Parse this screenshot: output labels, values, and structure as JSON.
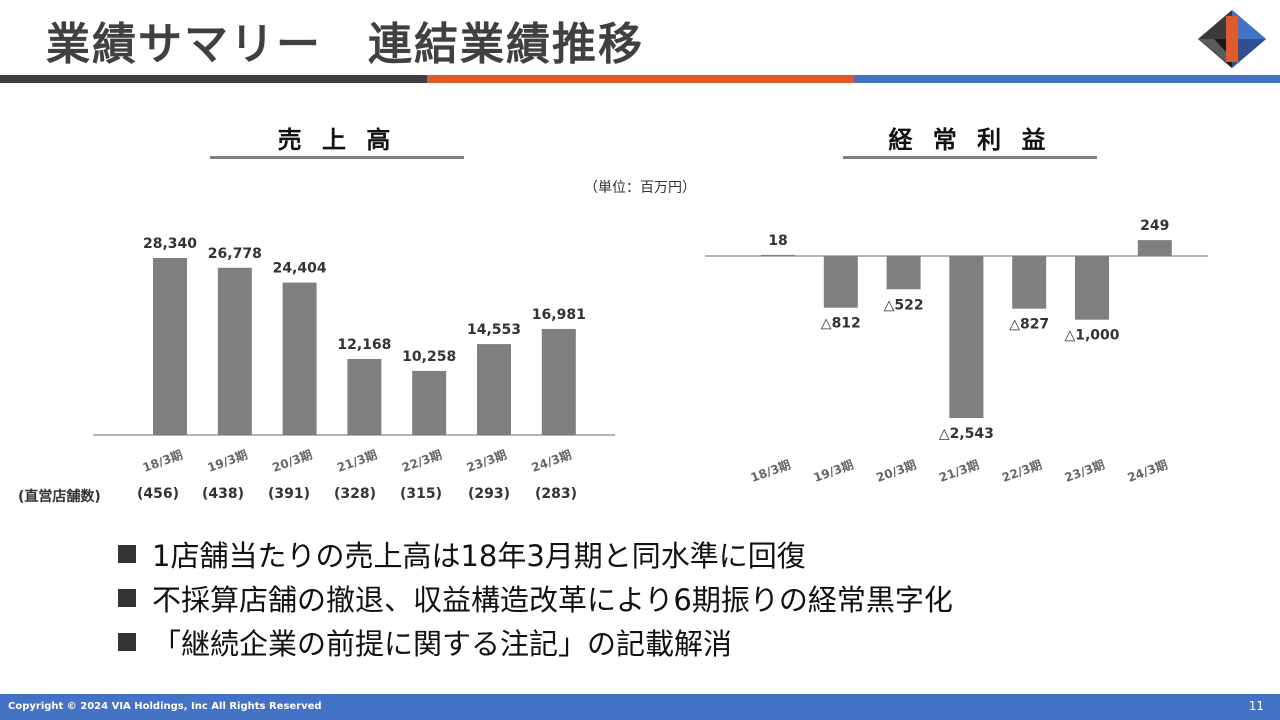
{
  "slide": {
    "title": "業績サマリー　連結業績推移",
    "unit_note": "（単位：百万円）",
    "colors": {
      "title_text": "#404040",
      "bar_gray": "#404040",
      "bar_orange": "#e05a2b",
      "bar_blue": "#4472c4",
      "chart_bar": "#7f7f7f"
    }
  },
  "store_counts": {
    "label": "(直営店舗数)",
    "values": [
      "(456)",
      "(438)",
      "(391)",
      "(328)",
      "(315)",
      "(293)",
      "(283)"
    ]
  },
  "bullets": [
    "1店舗当たりの売上高は18年3月期と同水準に回復",
    "不採算店舗の撤退、収益構造改革により6期振りの経常黒字化",
    "「継続企業の前提に関する注記」の記載解消"
  ],
  "footer": {
    "copyright": "Copyright © 2024 VIA Holdings, Inc All Rights Reserved",
    "page_number": "11"
  },
  "chart_data": [
    {
      "type": "bar",
      "title": "売 上 高",
      "categories": [
        "18/3期",
        "19/3期",
        "20/3期",
        "21/3期",
        "22/3期",
        "23/3期",
        "24/3期"
      ],
      "values": [
        28340,
        26778,
        24404,
        12168,
        10258,
        14553,
        16981
      ],
      "value_labels": [
        "28,340",
        "26,778",
        "24,404",
        "12,168",
        "10,258",
        "14,553",
        "16,981"
      ],
      "ylim": [
        0,
        28340
      ],
      "grid": false,
      "color": "#7f7f7f"
    },
    {
      "type": "bar",
      "title": "経 常 利 益",
      "categories": [
        "18/3期",
        "19/3期",
        "20/3期",
        "21/3期",
        "22/3期",
        "23/3期",
        "24/3期"
      ],
      "values": [
        18,
        -812,
        -522,
        -2543,
        -827,
        -1000,
        249
      ],
      "value_labels": [
        "18",
        "△812",
        "△522",
        "△2,543",
        "△827",
        "△1,000",
        "249"
      ],
      "ylim": [
        -2543,
        249
      ],
      "grid": false,
      "color": "#7f7f7f"
    }
  ]
}
